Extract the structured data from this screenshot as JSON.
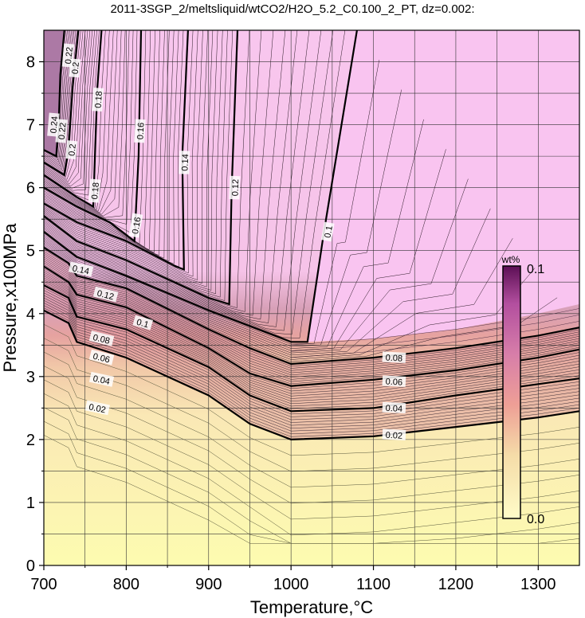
{
  "chart_data": {
    "type": "contour",
    "title": "2011-3SGP_2/meltsliquid/wtCO2/H2O_5.2_C0.100_2_PT, dz=0.002:",
    "xlabel": "Temperature,°C",
    "ylabel": "Pressure,x100MPa",
    "xlim": [
      700,
      1350
    ],
    "ylim": [
      0,
      8.5
    ],
    "xticks": [
      "700",
      "800",
      "900",
      "1000",
      "1100",
      "1200",
      "1300"
    ],
    "yticks": [
      "0",
      "1",
      "2",
      "3",
      "4",
      "5",
      "6",
      "7",
      "8"
    ],
    "grid": true,
    "colorbar": {
      "unit": "wt%",
      "min_label": "0.0",
      "max_label": "0.1",
      "colors": [
        "#fffcc8",
        "#f2c9a6",
        "#e89a90",
        "#c97aa0",
        "#b55aa8",
        "#6a1a60"
      ]
    },
    "fill_color_high": "#f8c6ee",
    "fill_color_low": "#fdfcb0",
    "contours": [
      {
        "label": "0.02",
        "points": [
          [
            700,
            4.05
          ],
          [
            730,
            3.85
          ],
          [
            740,
            3.55
          ],
          [
            800,
            3.3
          ],
          [
            900,
            2.7
          ],
          [
            950,
            2.25
          ],
          [
            1000,
            2.0
          ],
          [
            1100,
            2.05
          ],
          [
            1200,
            2.2
          ],
          [
            1300,
            2.35
          ],
          [
            1350,
            2.45
          ]
        ]
      },
      {
        "label": "0.04",
        "points": [
          [
            700,
            4.45
          ],
          [
            730,
            4.25
          ],
          [
            740,
            3.95
          ],
          [
            800,
            3.75
          ],
          [
            900,
            3.15
          ],
          [
            950,
            2.7
          ],
          [
            1000,
            2.45
          ],
          [
            1100,
            2.5
          ],
          [
            1200,
            2.7
          ],
          [
            1300,
            2.88
          ],
          [
            1350,
            2.97
          ]
        ]
      },
      {
        "label": "0.06",
        "points": [
          [
            700,
            4.75
          ],
          [
            730,
            4.5
          ],
          [
            740,
            4.3
          ],
          [
            800,
            4.1
          ],
          [
            900,
            3.45
          ],
          [
            950,
            3.05
          ],
          [
            1000,
            2.85
          ],
          [
            1100,
            2.95
          ],
          [
            1200,
            3.1
          ],
          [
            1300,
            3.3
          ],
          [
            1350,
            3.43
          ]
        ]
      },
      {
        "label": "0.08",
        "points": [
          [
            700,
            5.05
          ],
          [
            730,
            4.8
          ],
          [
            740,
            4.6
          ],
          [
            800,
            4.4
          ],
          [
            900,
            3.75
          ],
          [
            950,
            3.45
          ],
          [
            1000,
            3.2
          ],
          [
            1100,
            3.3
          ],
          [
            1200,
            3.45
          ],
          [
            1300,
            3.65
          ],
          [
            1350,
            3.78
          ]
        ]
      },
      {
        "label": "0.1",
        "points": [
          [
            700,
            5.3
          ],
          [
            740,
            4.9
          ],
          [
            800,
            4.6
          ],
          [
            900,
            4.05
          ],
          [
            1000,
            3.55
          ],
          [
            1020,
            3.55
          ],
          [
            1040,
            5.3
          ],
          [
            1080,
            8.5
          ]
        ]
      },
      {
        "label": "0.12",
        "points": [
          [
            700,
            5.55
          ],
          [
            740,
            5.15
          ],
          [
            800,
            4.85
          ],
          [
            900,
            4.25
          ],
          [
            925,
            4.15
          ],
          [
            928,
            6.0
          ],
          [
            935,
            8.5
          ]
        ]
      },
      {
        "label": "0.14",
        "points": [
          [
            700,
            5.75
          ],
          [
            740,
            5.45
          ],
          [
            800,
            5.15
          ],
          [
            860,
            4.75
          ],
          [
            870,
            4.7
          ],
          [
            868,
            6.5
          ],
          [
            875,
            8.5
          ]
        ]
      },
      {
        "label": "0.16",
        "points": [
          [
            700,
            6.0
          ],
          [
            740,
            5.7
          ],
          [
            780,
            5.45
          ],
          [
            810,
            5.15
          ],
          [
            815,
            6.5
          ],
          [
            818,
            8.5
          ]
        ]
      },
      {
        "label": "0.18",
        "points": [
          [
            700,
            6.2
          ],
          [
            740,
            5.85
          ],
          [
            760,
            5.7
          ],
          [
            762,
            6.5
          ],
          [
            765,
            7.6
          ],
          [
            770,
            8.5
          ]
        ]
      },
      {
        "label": "0.2",
        "points": [
          [
            700,
            6.4
          ],
          [
            725,
            6.2
          ],
          [
            730,
            6.6
          ],
          [
            735,
            7.6
          ],
          [
            742,
            8.5
          ]
        ]
      },
      {
        "label": "0.22",
        "points": [
          [
            700,
            6.6
          ],
          [
            715,
            6.5
          ],
          [
            718,
            7.0
          ],
          [
            720,
            7.8
          ],
          [
            725,
            8.5
          ]
        ]
      }
    ],
    "contour_labels": [
      {
        "text": "0.02",
        "x": 765,
        "y": 2.5,
        "angle": 12
      },
      {
        "text": "0.04",
        "x": 770,
        "y": 2.95,
        "angle": 12
      },
      {
        "text": "0.06",
        "x": 770,
        "y": 3.3,
        "angle": 14
      },
      {
        "text": "0.08",
        "x": 770,
        "y": 3.6,
        "angle": 14
      },
      {
        "text": "0.1",
        "x": 820,
        "y": 3.85,
        "angle": 16
      },
      {
        "text": "0.12",
        "x": 775,
        "y": 4.3,
        "angle": 14
      },
      {
        "text": "0.14",
        "x": 745,
        "y": 4.7,
        "angle": 12
      },
      {
        "text": "0.16",
        "x": 812,
        "y": 5.4,
        "angle": -80
      },
      {
        "text": "0.18",
        "x": 762,
        "y": 5.95,
        "angle": -85
      },
      {
        "text": "0.2",
        "x": 734,
        "y": 6.6,
        "angle": -85
      },
      {
        "text": "0.22",
        "x": 722,
        "y": 6.9,
        "angle": -85
      },
      {
        "text": "0.24",
        "x": 712,
        "y": 7.0,
        "angle": -85
      },
      {
        "text": "0.18",
        "x": 766,
        "y": 7.4,
        "angle": -86
      },
      {
        "text": "0.16",
        "x": 817,
        "y": 6.9,
        "angle": -87
      },
      {
        "text": "0.14",
        "x": 871,
        "y": 6.4,
        "angle": -88
      },
      {
        "text": "0.12",
        "x": 932,
        "y": 6.0,
        "angle": -88
      },
      {
        "text": "0.1",
        "x": 1045,
        "y": 5.3,
        "angle": -80
      },
      {
        "text": "0.2",
        "x": 738,
        "y": 7.9,
        "angle": -85
      },
      {
        "text": "0.22",
        "x": 730,
        "y": 8.1,
        "angle": -85
      },
      {
        "text": "0.08",
        "x": 1125,
        "y": 3.3,
        "angle": 3
      },
      {
        "text": "0.06",
        "x": 1125,
        "y": 2.92,
        "angle": 3
      },
      {
        "text": "0.04",
        "x": 1125,
        "y": 2.5,
        "angle": 3
      },
      {
        "text": "0.02",
        "x": 1125,
        "y": 2.07,
        "angle": 3
      }
    ]
  }
}
